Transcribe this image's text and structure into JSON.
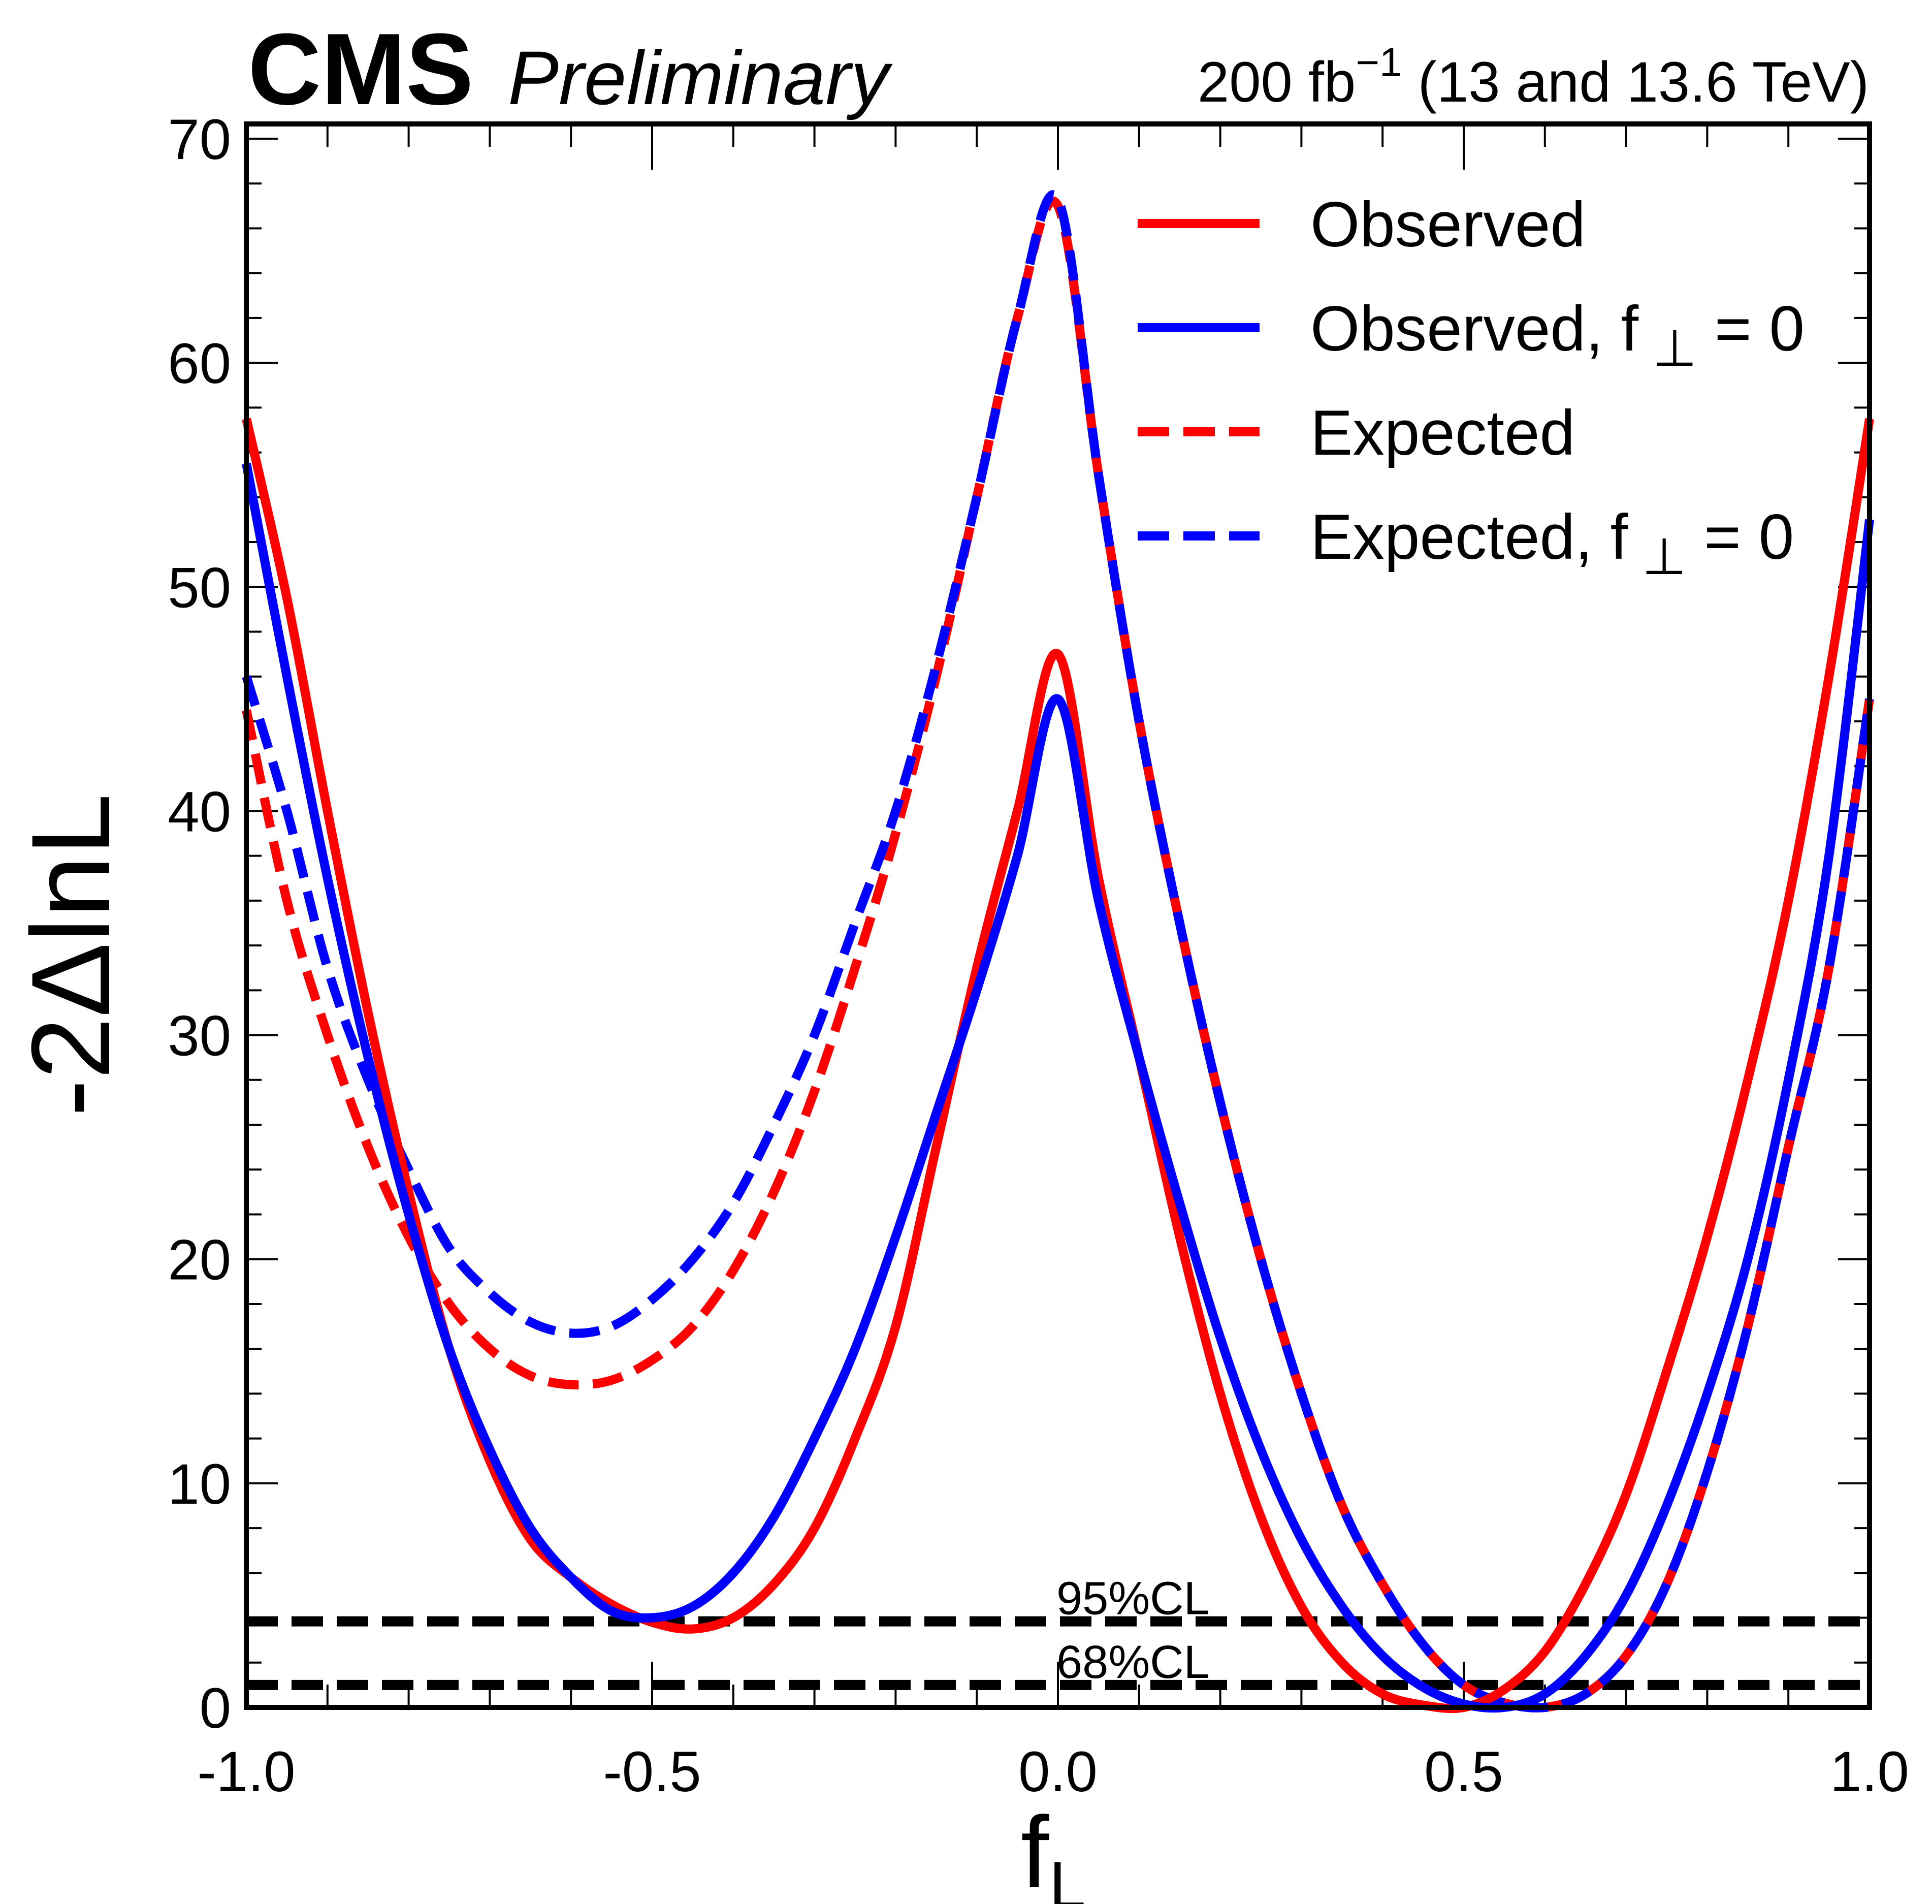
{
  "header": {
    "experiment": "CMS",
    "status": "Preliminary",
    "luminosity_prefix": "200 fb",
    "luminosity_exp": "−1",
    "luminosity_suffix": " (13 and 13.6 TeV)"
  },
  "chart_data": {
    "type": "line",
    "title": "",
    "xlabel": "f",
    "xlabel_sub": "L",
    "ylabel": "-2ΔlnL",
    "xlim": [
      -1.0,
      1.0
    ],
    "ylim": [
      0,
      70
    ],
    "x_ticks": [
      -1.0,
      -0.5,
      0.0,
      0.5,
      1.0
    ],
    "x_tick_labels": [
      "-1.0",
      "-0.5",
      "0.0",
      "0.5",
      "1.0"
    ],
    "y_ticks": [
      0,
      10,
      20,
      30,
      40,
      50,
      60,
      70
    ],
    "y_tick_labels": [
      "0",
      "10",
      "20",
      "30",
      "40",
      "50",
      "60",
      "70"
    ],
    "grid": false,
    "legend_position": "top-right",
    "reference_lines": [
      {
        "label": "95%CL",
        "y": 3.84
      },
      {
        "label": "68%CL",
        "y": 1.0
      }
    ],
    "x": [
      -1.0,
      -0.95,
      -0.9,
      -0.85,
      -0.8,
      -0.75,
      -0.7,
      -0.65,
      -0.6,
      -0.55,
      -0.5,
      -0.45,
      -0.4,
      -0.35,
      -0.3,
      -0.25,
      -0.2,
      -0.15,
      -0.1,
      -0.05,
      0.0,
      0.05,
      0.1,
      0.15,
      0.2,
      0.25,
      0.3,
      0.35,
      0.4,
      0.45,
      0.5,
      0.55,
      0.6,
      0.65,
      0.7,
      0.75,
      0.8,
      0.85,
      0.9,
      0.95,
      1.0
    ],
    "series": [
      {
        "name": "Observed",
        "legend_label": "Observed",
        "color": "#ff0000",
        "style": "solid",
        "values": [
          57.5,
          49.5,
          40,
          31,
          23,
          16,
          11,
          7.5,
          5.8,
          4.6,
          3.8,
          3.5,
          4,
          5.5,
          8,
          12,
          17,
          25,
          33,
          40,
          47,
          37,
          29,
          21,
          14,
          8.5,
          4.5,
          2,
          0.6,
          0.1,
          0,
          0.8,
          2.5,
          5.5,
          9.5,
          15,
          21,
          28,
          36,
          46,
          57.5
        ]
      },
      {
        "name": "Observed, f⊥ = 0",
        "legend_label": "Observed, f",
        "legend_sub": "⊥",
        "legend_tail": " = 0",
        "color": "#0000ff",
        "style": "solid",
        "values": [
          55.5,
          46,
          37,
          29,
          22,
          16,
          11.5,
          8,
          5.8,
          4.3,
          4,
          4.5,
          6,
          8.5,
          12,
          16,
          21,
          26.5,
          32,
          38,
          45,
          36,
          29,
          22.5,
          16.5,
          11.5,
          7.5,
          4.5,
          2.3,
          0.9,
          0.15,
          0,
          0.6,
          2.3,
          5,
          9,
          14,
          20,
          28,
          38,
          53
        ]
      },
      {
        "name": "Expected",
        "legend_label": "Expected",
        "color": "#ff0000",
        "style": "dashed",
        "values": [
          44.5,
          36,
          30,
          25,
          21,
          18,
          16,
          14.8,
          14.4,
          14.6,
          15.5,
          17,
          19.5,
          23,
          27.5,
          33,
          39,
          46,
          54,
          62,
          67,
          55,
          44,
          35,
          27,
          20,
          14,
          9,
          5.5,
          2.8,
          1.0,
          0.2,
          0,
          0.6,
          2.3,
          5.5,
          10.5,
          17,
          25,
          33,
          45
        ]
      },
      {
        "name": "Expected, f⊥ = 0",
        "legend_label": "Expected, f",
        "legend_sub": "⊥",
        "legend_tail": " = 0",
        "color": "#0000ff",
        "style": "dashed",
        "values": [
          46,
          40,
          33,
          28,
          24,
          20.5,
          18.5,
          17.2,
          16.7,
          17,
          18.2,
          20,
          22.5,
          26,
          30,
          35,
          40,
          46.5,
          54,
          62,
          67.3,
          55,
          44,
          35,
          27,
          20,
          14,
          9,
          5.5,
          2.8,
          1.0,
          0.2,
          0,
          0.6,
          2.3,
          5.5,
          10.5,
          17,
          25,
          33,
          45
        ]
      }
    ]
  }
}
